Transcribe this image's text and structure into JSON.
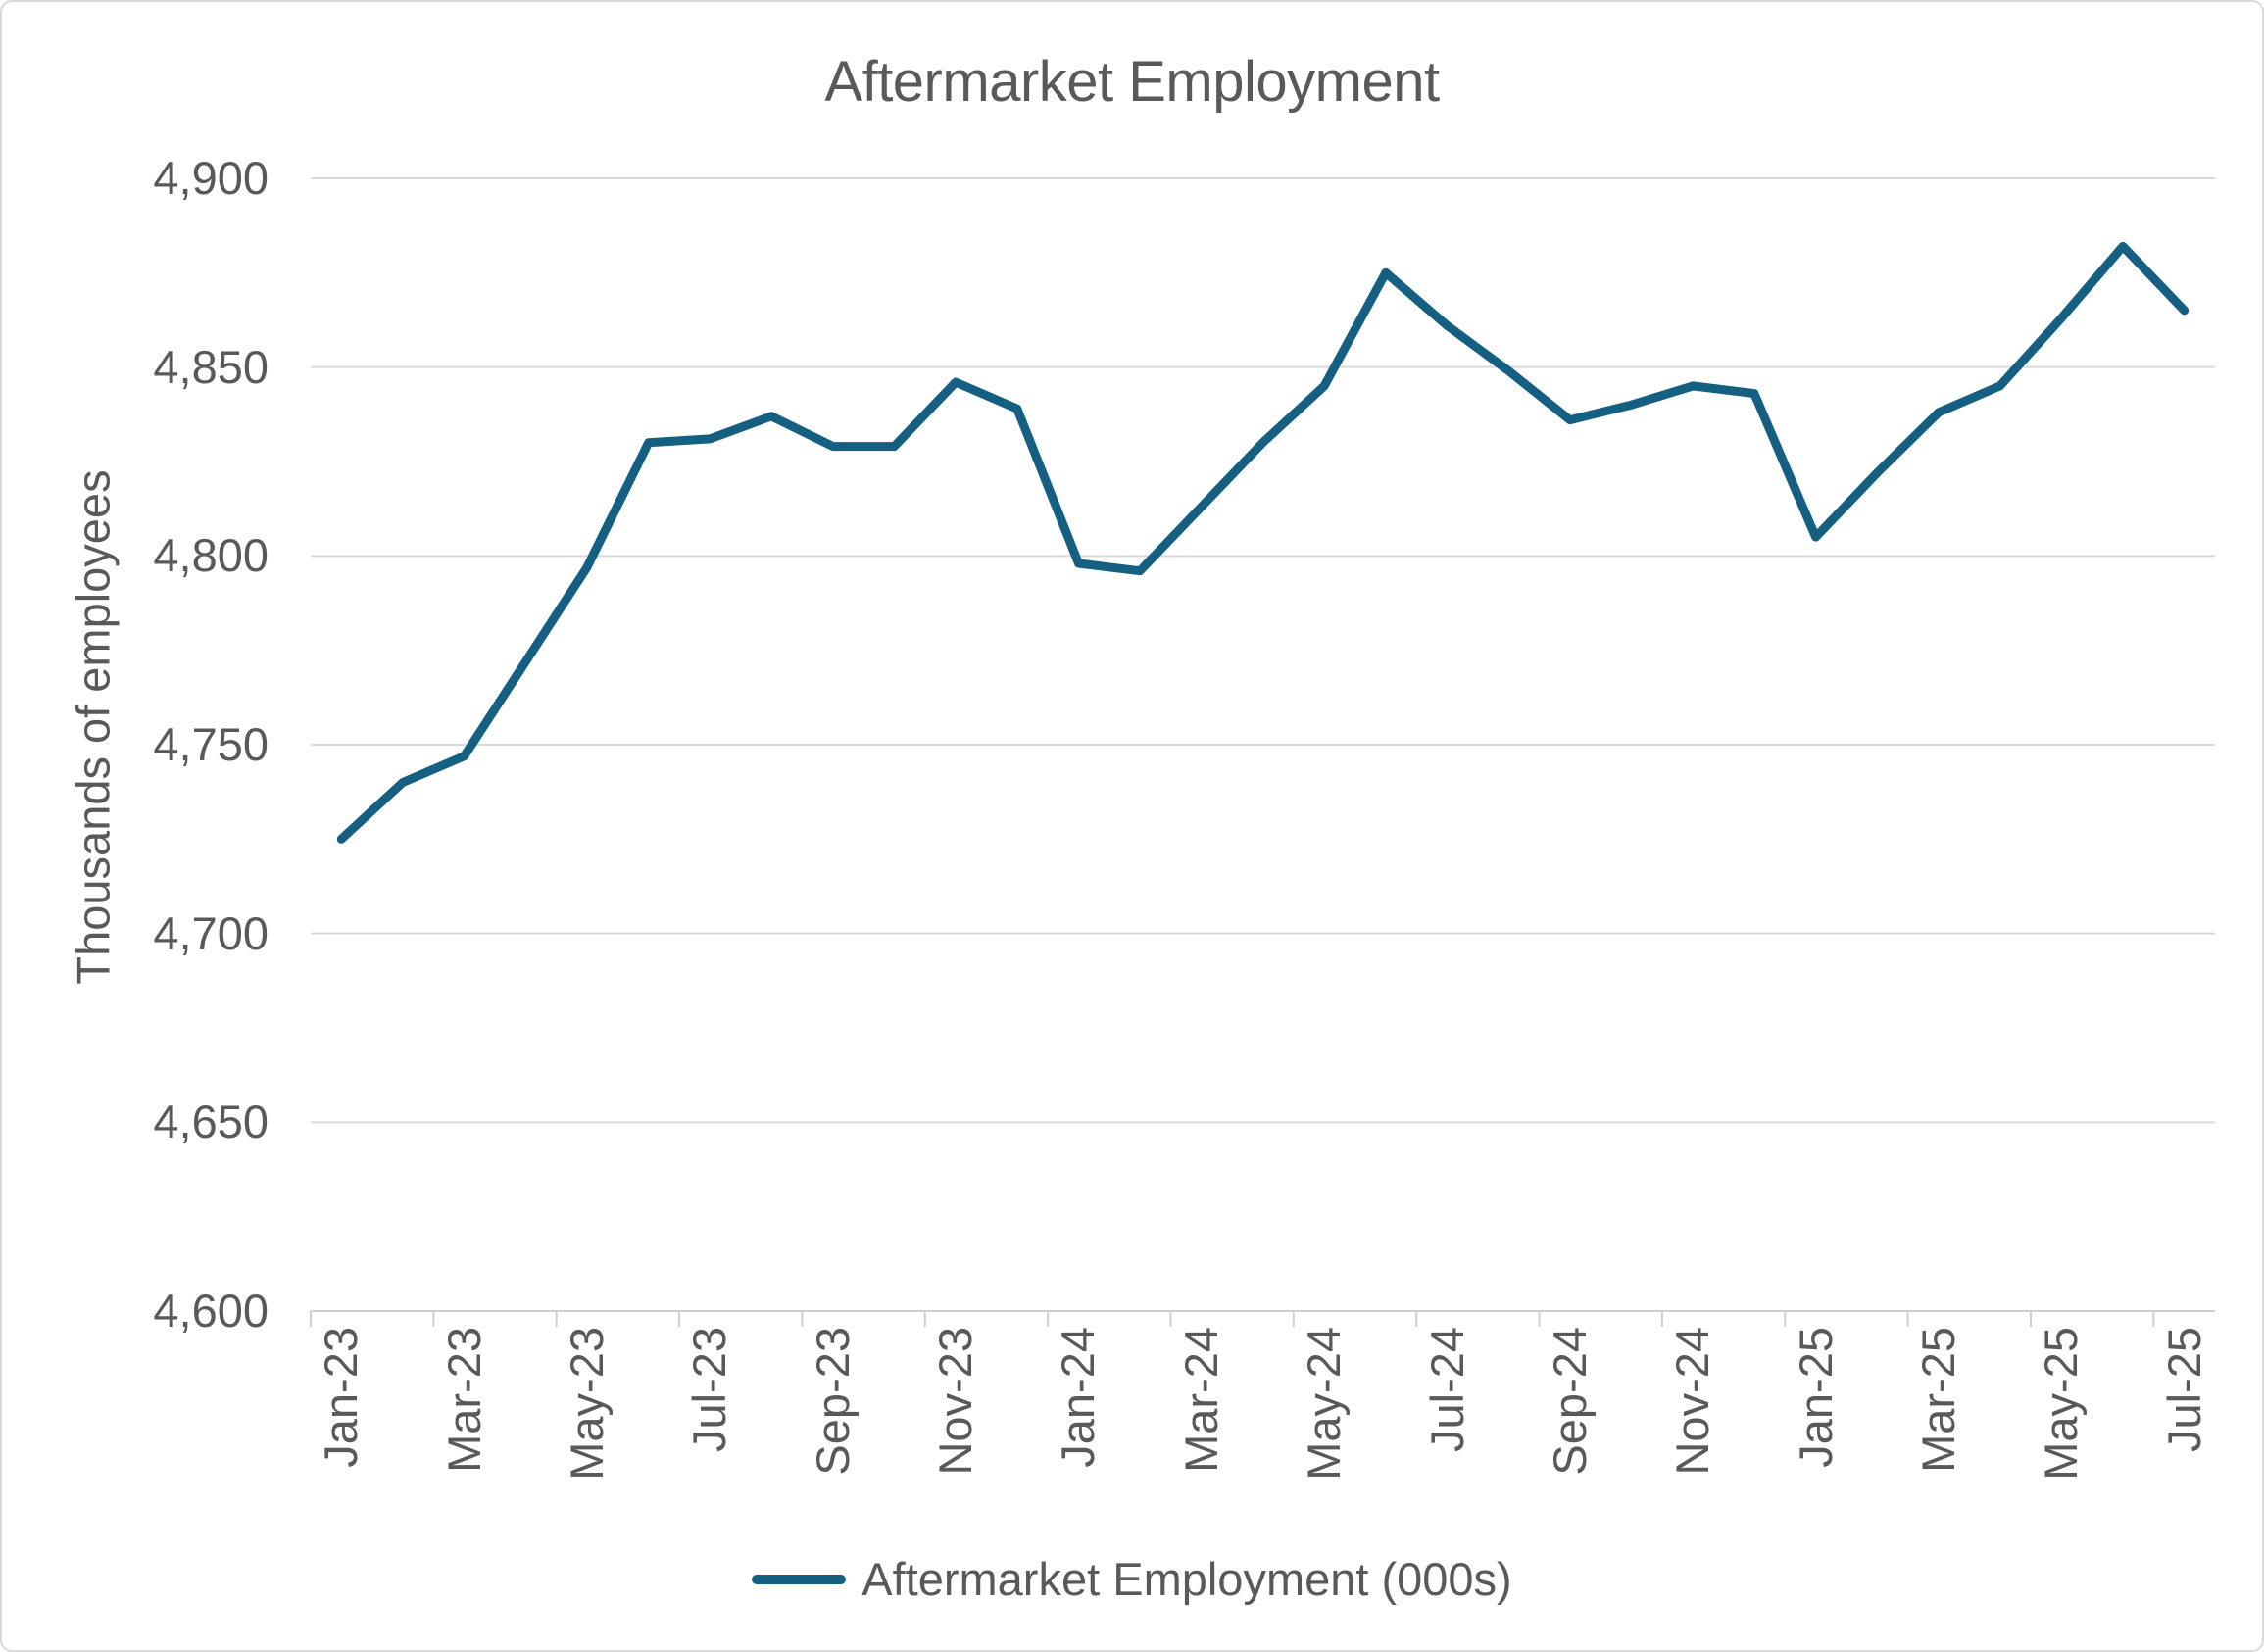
{
  "chart_data": {
    "type": "line",
    "title": "Aftermarket Employment",
    "ylabel": "Thousands of employees",
    "xlabel": "",
    "ylim": [
      4600,
      4900
    ],
    "ytick_step": 50,
    "y_tick_labels": [
      "4,600",
      "4,650",
      "4,700",
      "4,750",
      "4,800",
      "4,850",
      "4,900"
    ],
    "grid": true,
    "legend_position": "bottom",
    "x_tick_label_interval": 2,
    "categories": [
      "Jan-23",
      "Feb-23",
      "Mar-23",
      "Apr-23",
      "May-23",
      "Jun-23",
      "Jul-23",
      "Aug-23",
      "Sep-23",
      "Oct-23",
      "Nov-23",
      "Dec-23",
      "Jan-24",
      "Feb-24",
      "Mar-24",
      "Apr-24",
      "May-24",
      "Jun-24",
      "Jul-24",
      "Aug-24",
      "Sep-24",
      "Oct-24",
      "Nov-24",
      "Dec-24",
      "Jan-25",
      "Feb-25",
      "Mar-25",
      "Apr-25",
      "May-25",
      "Jun-25",
      "Jul-25"
    ],
    "series": [
      {
        "name": "Aftermarket Employment (000s)",
        "color": "#156082",
        "values": [
          4725,
          4740,
          4747,
          4772,
          4797,
          4830,
          4831,
          4837,
          4829,
          4829,
          4846,
          4839,
          4798,
          4796,
          4813,
          4830,
          4845,
          4875,
          4861,
          4849,
          4836,
          4840,
          4845,
          4843,
          4805,
          4822,
          4838,
          4845,
          4863,
          4882,
          4865
        ]
      }
    ],
    "colors": {
      "series": "#156082",
      "text": "#595959",
      "gridline": "#D9D9D9",
      "axis": "#D0D0D0",
      "background": "#FFFFFF",
      "border": "#D9D9D9"
    }
  }
}
